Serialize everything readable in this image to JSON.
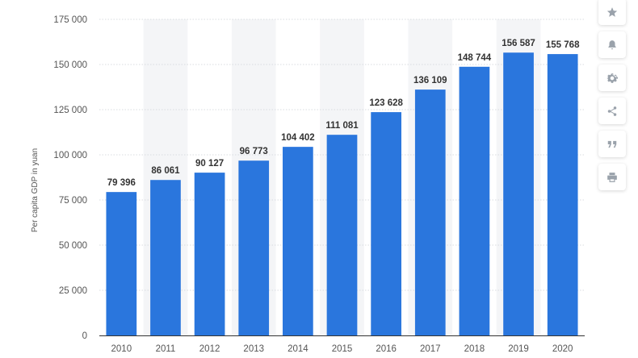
{
  "chart_data": {
    "type": "bar",
    "categories": [
      "2010",
      "2011",
      "2012",
      "2013",
      "2014",
      "2015",
      "2016",
      "2017",
      "2018",
      "2019",
      "2020"
    ],
    "values": [
      79396,
      86061,
      90127,
      96773,
      104402,
      111081,
      123628,
      136109,
      148744,
      156587,
      155768
    ],
    "data_labels": [
      "79 396",
      "86 061",
      "90 127",
      "96 773",
      "104 402",
      "111 081",
      "123 628",
      "136 109",
      "148 744",
      "156 587",
      "155 768"
    ],
    "ylabel": "Per capita GDP in yuan",
    "ylim": [
      0,
      175000
    ],
    "yticks": [
      0,
      25000,
      50000,
      75000,
      100000,
      125000,
      150000,
      175000
    ],
    "ytick_labels": [
      "0",
      "25 000",
      "50 000",
      "75 000",
      "100 000",
      "125 000",
      "150 000",
      "175 000"
    ],
    "grid": true,
    "bar_color": "#2a76dd",
    "alternating_band_color": "#f4f5f7"
  },
  "toolbar": {
    "icons": [
      "star-icon",
      "bell-icon",
      "gear-icon",
      "share-icon",
      "quote-icon",
      "print-icon"
    ]
  }
}
